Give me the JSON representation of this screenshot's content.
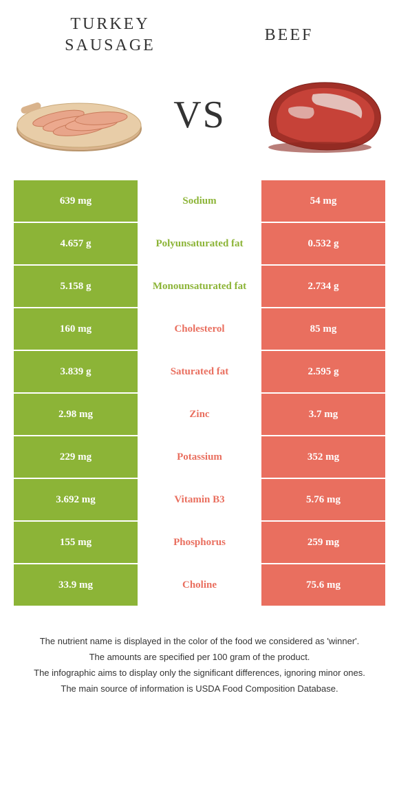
{
  "colors": {
    "left": "#8cb437",
    "right": "#e96f5f",
    "left_text": "#8cb437",
    "right_text": "#e96f5f"
  },
  "header": {
    "left_title": "TURKEY SAUSAGE",
    "right_title": "BEEF",
    "vs": "VS"
  },
  "rows": [
    {
      "left": "639 mg",
      "label": "Sodium",
      "right": "54 mg",
      "winner": "left"
    },
    {
      "left": "4.657 g",
      "label": "Polyunsaturated fat",
      "right": "0.532 g",
      "winner": "left"
    },
    {
      "left": "5.158 g",
      "label": "Monounsaturated fat",
      "right": "2.734 g",
      "winner": "left"
    },
    {
      "left": "160 mg",
      "label": "Cholesterol",
      "right": "85 mg",
      "winner": "right"
    },
    {
      "left": "3.839 g",
      "label": "Saturated fat",
      "right": "2.595 g",
      "winner": "right"
    },
    {
      "left": "2.98 mg",
      "label": "Zinc",
      "right": "3.7 mg",
      "winner": "right"
    },
    {
      "left": "229 mg",
      "label": "Potassium",
      "right": "352 mg",
      "winner": "right"
    },
    {
      "left": "3.692 mg",
      "label": "Vitamin B3",
      "right": "5.76 mg",
      "winner": "right"
    },
    {
      "left": "155 mg",
      "label": "Phosphorus",
      "right": "259 mg",
      "winner": "right"
    },
    {
      "left": "33.9 mg",
      "label": "Choline",
      "right": "75.6 mg",
      "winner": "right"
    }
  ],
  "footer": {
    "line1": "The nutrient name is displayed in the color of the food we considered as 'winner'.",
    "line2": "The amounts are specified per 100 gram of the product.",
    "line3": "The infographic aims to display only the significant differences, ignoring minor ones.",
    "line4": "The main source of information is USDA Food Composition Database."
  }
}
